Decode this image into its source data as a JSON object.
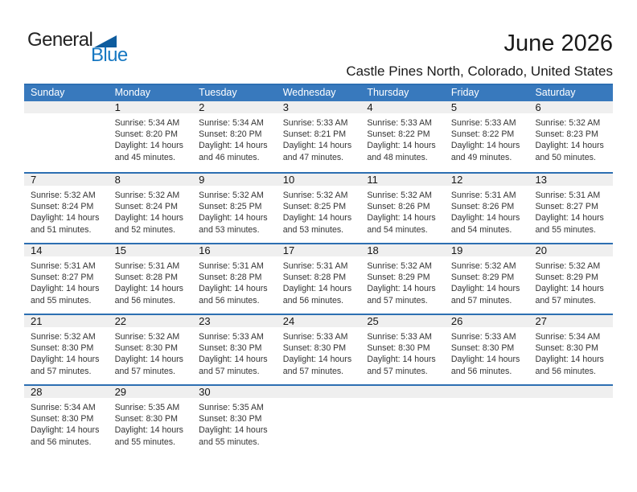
{
  "logo": {
    "general": "General",
    "blue": "Blue"
  },
  "header": {
    "month_title": "June 2026",
    "location": "Castle Pines North, Colorado, United States"
  },
  "colors": {
    "header_bg": "#3879bd",
    "divider": "#2d6fb2",
    "band": "#efefef",
    "logo_blue": "#1778c2",
    "logo_triangle": "#0e5c9e"
  },
  "calendar": {
    "day_headers": [
      "Sunday",
      "Monday",
      "Tuesday",
      "Wednesday",
      "Thursday",
      "Friday",
      "Saturday"
    ],
    "weeks": [
      [
        null,
        {
          "number": "1",
          "sunrise": "Sunrise: 5:34 AM",
          "sunset": "Sunset: 8:20 PM",
          "daylight_line1": "Daylight: 14 hours",
          "daylight_line2": "and 45 minutes."
        },
        {
          "number": "2",
          "sunrise": "Sunrise: 5:34 AM",
          "sunset": "Sunset: 8:20 PM",
          "daylight_line1": "Daylight: 14 hours",
          "daylight_line2": "and 46 minutes."
        },
        {
          "number": "3",
          "sunrise": "Sunrise: 5:33 AM",
          "sunset": "Sunset: 8:21 PM",
          "daylight_line1": "Daylight: 14 hours",
          "daylight_line2": "and 47 minutes."
        },
        {
          "number": "4",
          "sunrise": "Sunrise: 5:33 AM",
          "sunset": "Sunset: 8:22 PM",
          "daylight_line1": "Daylight: 14 hours",
          "daylight_line2": "and 48 minutes."
        },
        {
          "number": "5",
          "sunrise": "Sunrise: 5:33 AM",
          "sunset": "Sunset: 8:22 PM",
          "daylight_line1": "Daylight: 14 hours",
          "daylight_line2": "and 49 minutes."
        },
        {
          "number": "6",
          "sunrise": "Sunrise: 5:32 AM",
          "sunset": "Sunset: 8:23 PM",
          "daylight_line1": "Daylight: 14 hours",
          "daylight_line2": "and 50 minutes."
        }
      ],
      [
        {
          "number": "7",
          "sunrise": "Sunrise: 5:32 AM",
          "sunset": "Sunset: 8:24 PM",
          "daylight_line1": "Daylight: 14 hours",
          "daylight_line2": "and 51 minutes."
        },
        {
          "number": "8",
          "sunrise": "Sunrise: 5:32 AM",
          "sunset": "Sunset: 8:24 PM",
          "daylight_line1": "Daylight: 14 hours",
          "daylight_line2": "and 52 minutes."
        },
        {
          "number": "9",
          "sunrise": "Sunrise: 5:32 AM",
          "sunset": "Sunset: 8:25 PM",
          "daylight_line1": "Daylight: 14 hours",
          "daylight_line2": "and 53 minutes."
        },
        {
          "number": "10",
          "sunrise": "Sunrise: 5:32 AM",
          "sunset": "Sunset: 8:25 PM",
          "daylight_line1": "Daylight: 14 hours",
          "daylight_line2": "and 53 minutes."
        },
        {
          "number": "11",
          "sunrise": "Sunrise: 5:32 AM",
          "sunset": "Sunset: 8:26 PM",
          "daylight_line1": "Daylight: 14 hours",
          "daylight_line2": "and 54 minutes."
        },
        {
          "number": "12",
          "sunrise": "Sunrise: 5:31 AM",
          "sunset": "Sunset: 8:26 PM",
          "daylight_line1": "Daylight: 14 hours",
          "daylight_line2": "and 54 minutes."
        },
        {
          "number": "13",
          "sunrise": "Sunrise: 5:31 AM",
          "sunset": "Sunset: 8:27 PM",
          "daylight_line1": "Daylight: 14 hours",
          "daylight_line2": "and 55 minutes."
        }
      ],
      [
        {
          "number": "14",
          "sunrise": "Sunrise: 5:31 AM",
          "sunset": "Sunset: 8:27 PM",
          "daylight_line1": "Daylight: 14 hours",
          "daylight_line2": "and 55 minutes."
        },
        {
          "number": "15",
          "sunrise": "Sunrise: 5:31 AM",
          "sunset": "Sunset: 8:28 PM",
          "daylight_line1": "Daylight: 14 hours",
          "daylight_line2": "and 56 minutes."
        },
        {
          "number": "16",
          "sunrise": "Sunrise: 5:31 AM",
          "sunset": "Sunset: 8:28 PM",
          "daylight_line1": "Daylight: 14 hours",
          "daylight_line2": "and 56 minutes."
        },
        {
          "number": "17",
          "sunrise": "Sunrise: 5:31 AM",
          "sunset": "Sunset: 8:28 PM",
          "daylight_line1": "Daylight: 14 hours",
          "daylight_line2": "and 56 minutes."
        },
        {
          "number": "18",
          "sunrise": "Sunrise: 5:32 AM",
          "sunset": "Sunset: 8:29 PM",
          "daylight_line1": "Daylight: 14 hours",
          "daylight_line2": "and 57 minutes."
        },
        {
          "number": "19",
          "sunrise": "Sunrise: 5:32 AM",
          "sunset": "Sunset: 8:29 PM",
          "daylight_line1": "Daylight: 14 hours",
          "daylight_line2": "and 57 minutes."
        },
        {
          "number": "20",
          "sunrise": "Sunrise: 5:32 AM",
          "sunset": "Sunset: 8:29 PM",
          "daylight_line1": "Daylight: 14 hours",
          "daylight_line2": "and 57 minutes."
        }
      ],
      [
        {
          "number": "21",
          "sunrise": "Sunrise: 5:32 AM",
          "sunset": "Sunset: 8:30 PM",
          "daylight_line1": "Daylight: 14 hours",
          "daylight_line2": "and 57 minutes."
        },
        {
          "number": "22",
          "sunrise": "Sunrise: 5:32 AM",
          "sunset": "Sunset: 8:30 PM",
          "daylight_line1": "Daylight: 14 hours",
          "daylight_line2": "and 57 minutes."
        },
        {
          "number": "23",
          "sunrise": "Sunrise: 5:33 AM",
          "sunset": "Sunset: 8:30 PM",
          "daylight_line1": "Daylight: 14 hours",
          "daylight_line2": "and 57 minutes."
        },
        {
          "number": "24",
          "sunrise": "Sunrise: 5:33 AM",
          "sunset": "Sunset: 8:30 PM",
          "daylight_line1": "Daylight: 14 hours",
          "daylight_line2": "and 57 minutes."
        },
        {
          "number": "25",
          "sunrise": "Sunrise: 5:33 AM",
          "sunset": "Sunset: 8:30 PM",
          "daylight_line1": "Daylight: 14 hours",
          "daylight_line2": "and 57 minutes."
        },
        {
          "number": "26",
          "sunrise": "Sunrise: 5:33 AM",
          "sunset": "Sunset: 8:30 PM",
          "daylight_line1": "Daylight: 14 hours",
          "daylight_line2": "and 56 minutes."
        },
        {
          "number": "27",
          "sunrise": "Sunrise: 5:34 AM",
          "sunset": "Sunset: 8:30 PM",
          "daylight_line1": "Daylight: 14 hours",
          "daylight_line2": "and 56 minutes."
        }
      ],
      [
        {
          "number": "28",
          "sunrise": "Sunrise: 5:34 AM",
          "sunset": "Sunset: 8:30 PM",
          "daylight_line1": "Daylight: 14 hours",
          "daylight_line2": "and 56 minutes."
        },
        {
          "number": "29",
          "sunrise": "Sunrise: 5:35 AM",
          "sunset": "Sunset: 8:30 PM",
          "daylight_line1": "Daylight: 14 hours",
          "daylight_line2": "and 55 minutes."
        },
        {
          "number": "30",
          "sunrise": "Sunrise: 5:35 AM",
          "sunset": "Sunset: 8:30 PM",
          "daylight_line1": "Daylight: 14 hours",
          "daylight_line2": "and 55 minutes."
        },
        null,
        null,
        null,
        null
      ]
    ]
  }
}
